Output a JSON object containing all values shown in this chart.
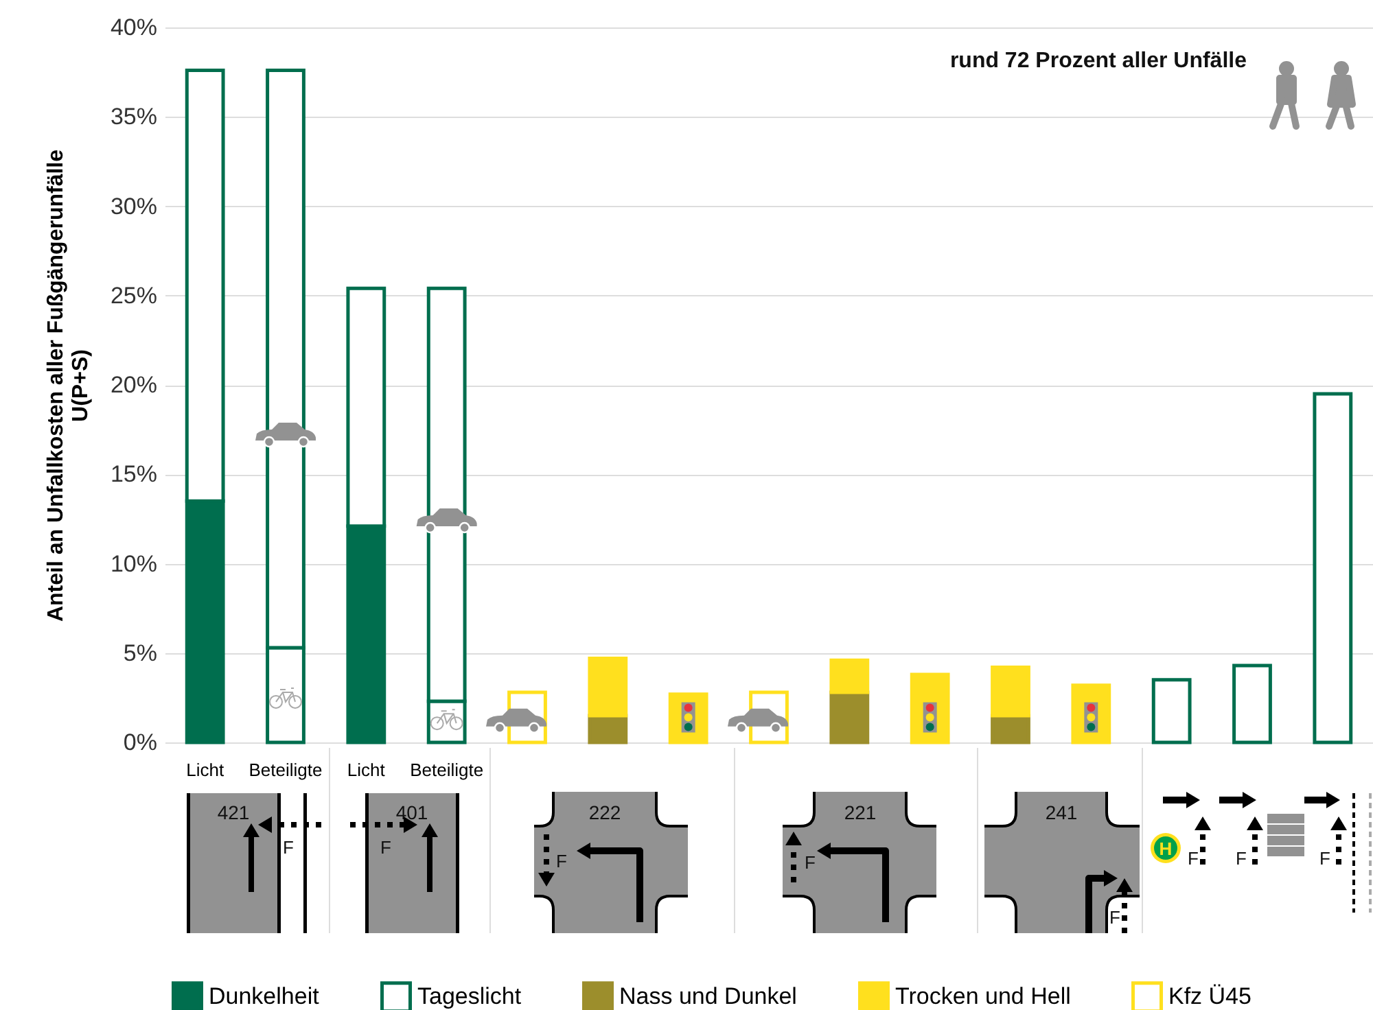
{
  "chart_data": {
    "type": "bar",
    "stacked": true,
    "ylabel": "Anteil an Unfallkosten aller Fußgängerunfälle\nU(P+S)",
    "categories": [
      "Licht",
      "Beteiligte",
      "Licht",
      "Beteiligte",
      null,
      null,
      null,
      null,
      null,
      null,
      null,
      null,
      null,
      null,
      null
    ],
    "series": [
      {
        "name": "Dunkelheit",
        "color": "#006e4e",
        "values": [
          13.5,
          null,
          12.1,
          null,
          null,
          null,
          null,
          null,
          null,
          null,
          null,
          null,
          null,
          null,
          null
        ]
      },
      {
        "name": "Tageslicht",
        "color": "#006e4e",
        "values": [
          24.1,
          5.3,
          13.3,
          2.3,
          null,
          null,
          null,
          null,
          null,
          null,
          null,
          null,
          3.5,
          4.3,
          19.5
        ]
      },
      {
        "color": "#006e4e",
        "values": [
          null,
          32.3,
          null,
          23.1,
          null,
          null,
          null,
          null,
          null,
          null,
          null,
          null,
          null,
          null,
          null
        ]
      },
      {
        "name": "Nass und Dunkel",
        "color": "#9c8e2c",
        "values": [
          null,
          null,
          null,
          null,
          null,
          1.5,
          null,
          null,
          2.8,
          null,
          1.5,
          null,
          null,
          null,
          null
        ]
      },
      {
        "name": "Trocken und Hell",
        "color": "#ffe01e",
        "values": [
          null,
          null,
          null,
          null,
          null,
          3.2,
          2.7,
          null,
          1.8,
          3.8,
          2.7,
          3.2,
          null,
          null,
          null
        ]
      },
      {
        "name": "Kfz Ü45",
        "color": "#ffe01e",
        "values": [
          null,
          null,
          null,
          null,
          2.8,
          null,
          null,
          2.8,
          null,
          null,
          null,
          null,
          null,
          null,
          null
        ]
      }
    ],
    "ylim": [
      0,
      40
    ],
    "yticks": [
      {
        "value": 0,
        "label": "0%"
      },
      {
        "value": 5,
        "label": "5%"
      },
      {
        "value": 10,
        "label": "10%"
      },
      {
        "value": 15,
        "label": "15%"
      },
      {
        "value": 20,
        "label": "20%"
      },
      {
        "value": 25,
        "label": "25%"
      },
      {
        "value": 30,
        "label": "30%"
      },
      {
        "value": 35,
        "label": "35%"
      },
      {
        "value": 40,
        "label": "40%"
      }
    ],
    "grid": "y",
    "legend": "bottom",
    "annotations": [
      "rund 72 Prozent aller Unfälle",
      "421",
      "401",
      "222",
      "221",
      "241",
      "F",
      "H"
    ]
  }
}
